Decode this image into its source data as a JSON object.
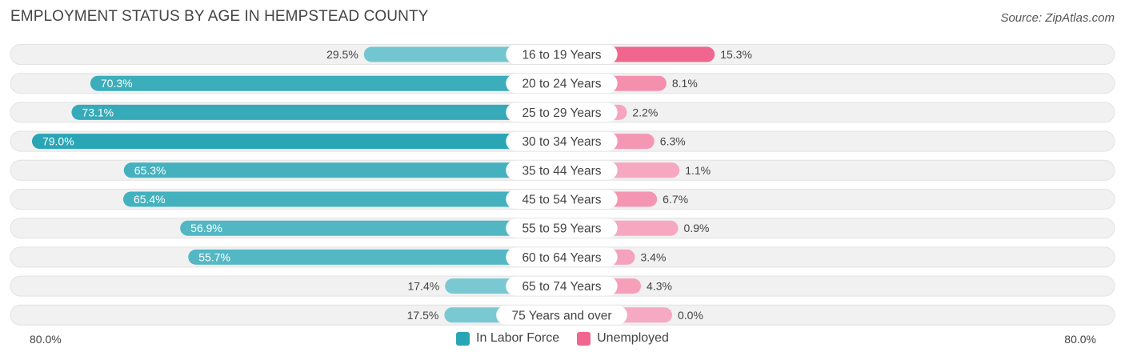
{
  "header": {
    "title": "EMPLOYMENT STATUS BY AGE IN HEMPSTEAD COUNTY",
    "source": "Source: ZipAtlas.com"
  },
  "colors": {
    "labor_light": "#7ecbd3",
    "labor_dark": "#2aa5b5",
    "unemp_light": "#f6a9c2",
    "unemp_dark": "#f0668f",
    "row_bg": "#f1f1f1"
  },
  "axis": {
    "left_label": "80.0%",
    "right_label": "80.0%"
  },
  "legend": {
    "items": [
      {
        "label": "In Labor Force",
        "color": "#2aa5b5"
      },
      {
        "label": "Unemployed",
        "color": "#f0668f"
      }
    ]
  },
  "chart_data": {
    "type": "bar",
    "orientation": "horizontal-diverging",
    "title": "EMPLOYMENT STATUS BY AGE IN HEMPSTEAD COUNTY",
    "categories": [
      "16 to 19 Years",
      "20 to 24 Years",
      "25 to 29 Years",
      "30 to 34 Years",
      "35 to 44 Years",
      "45 to 54 Years",
      "55 to 59 Years",
      "60 to 64 Years",
      "65 to 74 Years",
      "75 Years and over"
    ],
    "series": [
      {
        "name": "In Labor Force",
        "values": [
          29.5,
          70.3,
          73.1,
          79.0,
          65.3,
          65.4,
          56.9,
          55.7,
          17.4,
          17.5
        ],
        "labels": [
          "29.5%",
          "70.3%",
          "73.1%",
          "79.0%",
          "65.3%",
          "65.4%",
          "56.9%",
          "55.7%",
          "17.4%",
          "17.5%"
        ]
      },
      {
        "name": "Unemployed",
        "values": [
          15.3,
          8.1,
          2.2,
          6.3,
          1.1,
          6.7,
          0.9,
          3.4,
          4.3,
          0.0
        ],
        "labels": [
          "15.3%",
          "8.1%",
          "2.2%",
          "6.3%",
          "1.1%",
          "6.7%",
          "0.9%",
          "3.4%",
          "4.3%",
          "0.0%"
        ]
      }
    ],
    "xlim": [
      -80,
      80
    ],
    "legend_position": "bottom-center"
  }
}
